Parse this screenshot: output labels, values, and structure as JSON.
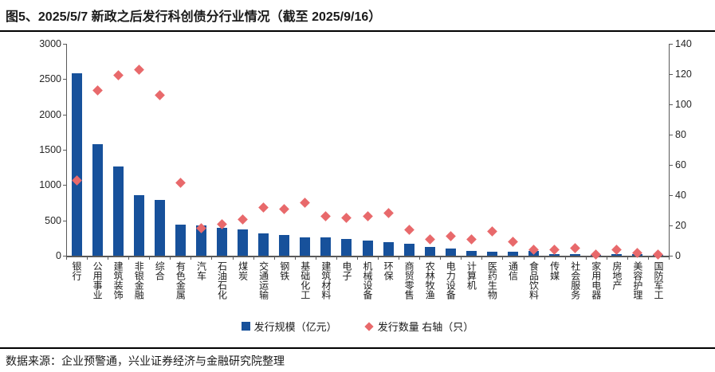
{
  "title": "图5、2025/5/7 新政之后发行科创债分行业情况（截至 2025/9/16）",
  "footer": "数据来源：企业预警通，兴业证券经济与金融研究院整理",
  "colors": {
    "bar": "#17519B",
    "marker": "#E8696B",
    "axis": "#595959",
    "text": "#1a1a1a",
    "rule": "#000000"
  },
  "chart_data": {
    "type": "bar",
    "title": "2025/5/7 新政之后发行科创债分行业情况（截至 2025/9/16）",
    "grid": false,
    "legend_position": "bottom",
    "xlabel": "",
    "ylabel_left": "发行规模（亿元）",
    "ylabel_right": "发行数量（只）",
    "categories": [
      "银行",
      "公用事业",
      "建筑装饰",
      "非银金融",
      "综合",
      "有色金属",
      "汽车",
      "石油石化",
      "煤炭",
      "交通运输",
      "钢铁",
      "基础化工",
      "建筑材料",
      "电子",
      "机械设备",
      "环保",
      "商贸零售",
      "农林牧渔",
      "电力设备",
      "计算机",
      "医药生物",
      "通信",
      "食品饮料",
      "传媒",
      "社会服务",
      "家用电器",
      "房地产",
      "美容护理",
      "国防军工"
    ],
    "series": [
      {
        "name": "发行规模（亿元）",
        "kind": "bar",
        "axis": "left",
        "values": [
          2578,
          1576,
          1263,
          857,
          785,
          443,
          427,
          398,
          375,
          314,
          296,
          262,
          258,
          235,
          217,
          194,
          172,
          119,
          99,
          73,
          62,
          59,
          70,
          25,
          28,
          14,
          20,
          17,
          6
        ]
      },
      {
        "name": "发行数量 右轴（只）",
        "kind": "scatter",
        "axis": "right",
        "values": [
          50,
          109,
          119,
          123,
          106,
          48,
          18,
          21,
          24,
          32,
          31,
          35,
          26,
          25,
          26,
          28,
          17,
          11,
          13,
          11,
          16,
          9,
          4,
          4,
          5,
          1,
          4,
          2,
          1
        ]
      }
    ],
    "left_axis": {
      "min": 0,
      "max": 3000,
      "step": 500,
      "tick_labels": [
        "0",
        "500",
        "1000",
        "1500",
        "2000",
        "2500",
        "3000"
      ]
    },
    "right_axis": {
      "min": 0,
      "max": 140,
      "step": 20,
      "tick_labels": [
        "0",
        "20",
        "40",
        "60",
        "80",
        "100",
        "120",
        "140"
      ]
    }
  }
}
